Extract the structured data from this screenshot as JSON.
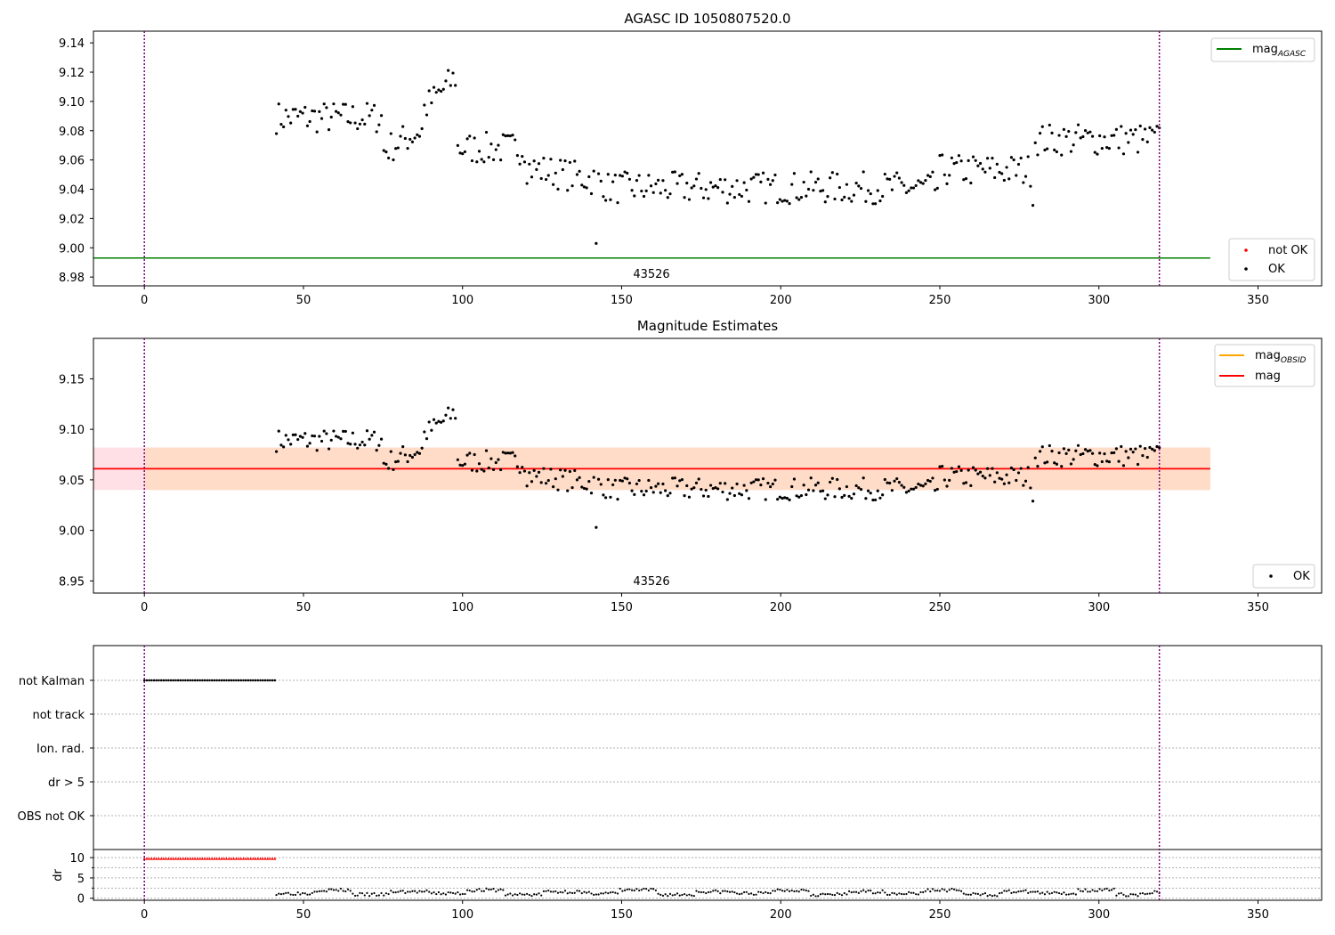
{
  "chart_data": [
    {
      "type": "scatter",
      "title": "AGASC ID 1050807520.0",
      "xlim": [
        -16,
        370
      ],
      "ylim": [
        8.974,
        9.148
      ],
      "xticks": [
        0,
        50,
        100,
        150,
        200,
        250,
        300,
        350
      ],
      "yticks": [
        8.98,
        9.0,
        9.02,
        9.04,
        9.06,
        9.08,
        9.1,
        9.12,
        9.14
      ],
      "vlines": [
        0,
        319
      ],
      "hline": {
        "y": 8.993,
        "x_range": [
          -16,
          335
        ],
        "color": "#008000"
      },
      "annotation": {
        "text": "43526",
        "x": 159,
        "y": 8.979
      },
      "legend_upper": [
        {
          "label": "mag",
          "subscript": "AGASC",
          "color": "#008000"
        }
      ],
      "legend_lower": [
        {
          "label": "not OK",
          "color": "#ff0000"
        },
        {
          "label": "OK",
          "color": "#000000"
        }
      ],
      "grid": false
    },
    {
      "type": "scatter",
      "title": "Magnitude Estimates",
      "xlim": [
        -16,
        370
      ],
      "ylim": [
        8.938,
        9.19
      ],
      "xticks": [
        0,
        50,
        100,
        150,
        200,
        250,
        300,
        350
      ],
      "yticks": [
        8.95,
        9.0,
        9.05,
        9.1,
        9.15
      ],
      "vlines": [
        0,
        319
      ],
      "mag_line": {
        "y": 9.061,
        "color": "#ff0000"
      },
      "band_outer": {
        "y_range": [
          9.04,
          9.082
        ],
        "x_range": [
          -16,
          335
        ],
        "color": "#ffe0e6"
      },
      "band_inner": {
        "y_range": [
          9.04,
          9.082
        ],
        "x_range": [
          0,
          335
        ],
        "color": "#ffdcc8"
      },
      "annotation": {
        "text": "43526",
        "x": 159,
        "y": 8.947
      },
      "legend_upper": [
        {
          "label": "mag",
          "subscript": "OBSID",
          "color": "#ffa500"
        },
        {
          "label": "mag",
          "color": "#ff0000"
        }
      ],
      "legend_lower": [
        {
          "label": "OK",
          "color": "#000000"
        }
      ],
      "grid": false
    },
    {
      "type": "scatter",
      "title": "",
      "xlim": [
        -16,
        370
      ],
      "xticks": [
        0,
        50,
        100,
        150,
        200,
        250,
        300,
        350
      ],
      "vlines": [
        0,
        319
      ],
      "flag_categories": [
        "not Kalman",
        "not track",
        "Ion. rad.",
        "dr > 5",
        "OBS not OK"
      ],
      "flag_series": [
        {
          "name": "not Kalman",
          "x_range": [
            0,
            41
          ],
          "count": 55
        }
      ],
      "dr": {
        "ylabel": "dr",
        "ylim": [
          -0.5,
          12
        ],
        "yticks": [
          0,
          5,
          10
        ],
        "minor_yticks": [
          2.5,
          7.5
        ],
        "red_series": {
          "x_range": [
            0,
            41
          ],
          "y": 9.8,
          "count": 55,
          "color": "#ff0000"
        }
      }
    }
  ]
}
